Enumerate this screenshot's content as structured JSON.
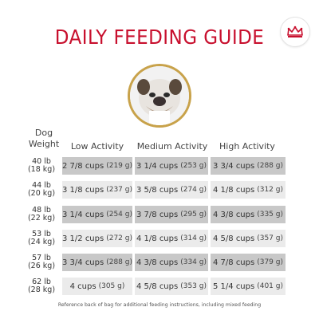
{
  "title": "DAILY FEEDING GUIDE",
  "badge_icon": "royal-canin-crown-icon",
  "portrait_icon": "bulldog-portrait-icon",
  "brand_color": "#c8102e",
  "gold_ring": "#c8a24a",
  "header": {
    "dog_weight": [
      "Dog",
      "Weight"
    ],
    "low": "Low Activity",
    "medium": "Medium Activity",
    "high": "High Activity"
  },
  "rows": [
    {
      "lb": "40 lb",
      "kg": "(18 kg)",
      "low": "2 7/8 cups",
      "low_g": "(219 g)",
      "med": "3 1/4 cups",
      "med_g": "(253 g)",
      "high": "3 3/4 cups",
      "high_g": "(288 g)"
    },
    {
      "lb": "44 lb",
      "kg": "(20 kg)",
      "low": "3 1/8 cups",
      "low_g": "(237 g)",
      "med": "3 5/8 cups",
      "med_g": "(274 g)",
      "high": "4 1/8 cups",
      "high_g": "(312 g)"
    },
    {
      "lb": "48 lb",
      "kg": "(22 kg)",
      "low": "3 1/4 cups",
      "low_g": "(254 g)",
      "med": "3 7/8 cups",
      "med_g": "(295 g)",
      "high": "4 3/8 cups",
      "high_g": "(335 g)"
    },
    {
      "lb": "53 lb",
      "kg": "(24 kg)",
      "low": "3 1/2 cups",
      "low_g": "(272 g)",
      "med": "4 1/8 cups",
      "med_g": "(314 g)",
      "high": "4 5/8 cups",
      "high_g": "(357 g)"
    },
    {
      "lb": "57 lb",
      "kg": "(26 kg)",
      "low": "3 3/4 cups",
      "low_g": "(288 g)",
      "med": "4 3/8 cups",
      "med_g": "(334 g)",
      "high": "4 7/8 cups",
      "high_g": "(379 g)"
    },
    {
      "lb": "62 lb",
      "kg": "(28 kg)",
      "low": "4 cups",
      "low_g": "(305 g)",
      "med": "4 5/8 cups",
      "med_g": "(353 g)",
      "high": "5 1/4 cups",
      "high_g": "(401 g)"
    }
  ],
  "footer": "Reference back of bag for additional feeding instructions, including mixed feeding"
}
